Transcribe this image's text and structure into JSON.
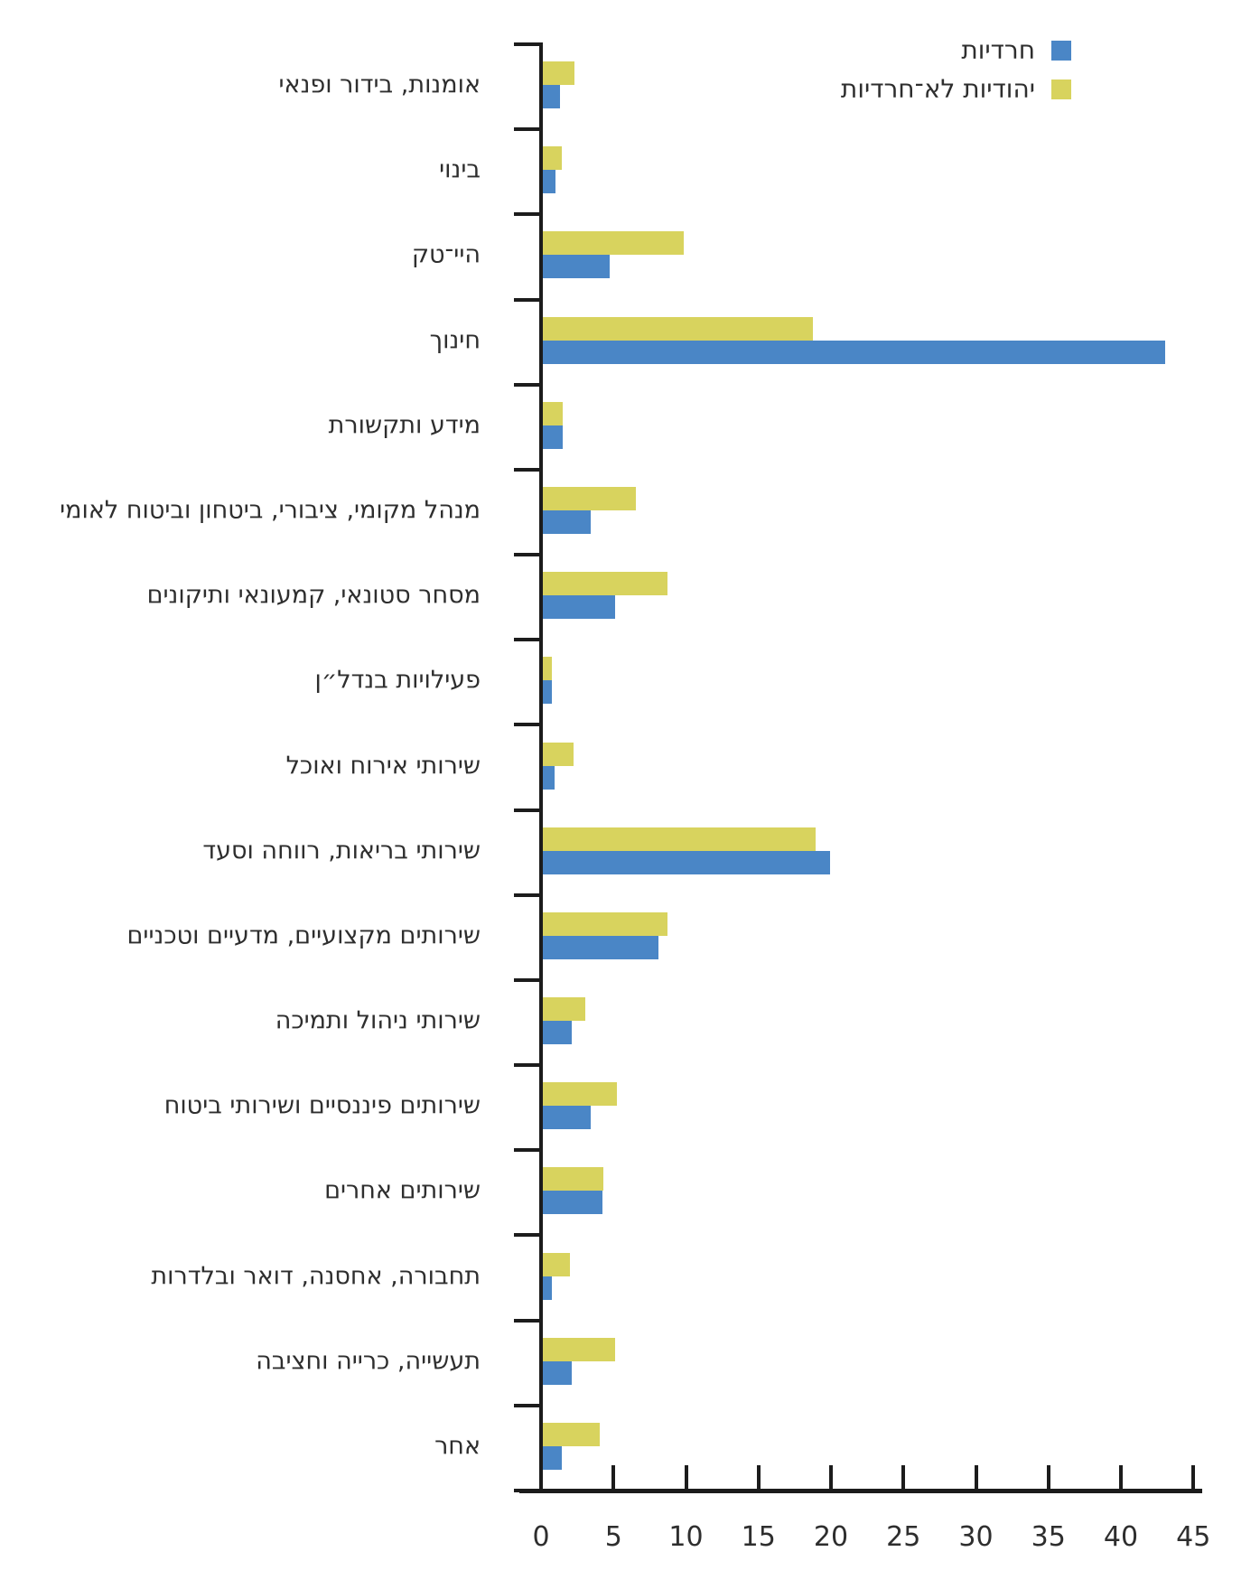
{
  "legend": {
    "items": [
      {
        "label": "חרדיות",
        "color": "#4a86c6"
      },
      {
        "label": "יהודיות לא־חרדיות",
        "color": "#d8d35e"
      }
    ]
  },
  "chart_data": {
    "type": "bar",
    "orientation": "horizontal",
    "title": "",
    "xlabel": "",
    "ylabel": "",
    "xlim": [
      0,
      45
    ],
    "x_ticks": [
      0,
      5,
      10,
      15,
      20,
      25,
      30,
      35,
      40,
      45
    ],
    "grid": false,
    "legend_position": "top-right",
    "categories": [
      "אומנות, בידור ופנאי",
      "בינוי",
      "היי־טק",
      "חינוך",
      "מידע ותקשורת",
      "מנהל מקומי, ציבורי, ביטחון וביטוח לאומי",
      "מסחר סטונאי, קמעונאי ותיקונים",
      "פעילויות בנדל״ן",
      "שירותי אירוח ואוכל",
      "שירותי בריאות, רווחה וסעד",
      "שירותים מקצועיים, מדעיים וטכניים",
      "שירותי ניהול ותמיכה",
      "שירותים פיננסיים ושירותי ביטוח",
      "שירותים אחרים",
      "תחבורה, אחסנה, דואר ובלדרות",
      "תעשייה, כרייה וחציבה",
      "אחר"
    ],
    "series": [
      {
        "name": "חרדיות",
        "color": "#4a86c6",
        "values": [
          1.2,
          0.9,
          4.6,
          42.9,
          1.4,
          3.3,
          5.0,
          0.6,
          0.8,
          19.8,
          8.0,
          2.0,
          3.3,
          4.1,
          0.6,
          2.0,
          1.3
        ]
      },
      {
        "name": "יהודיות לא־חרדיות",
        "color": "#d8d35e",
        "values": [
          2.2,
          1.3,
          9.7,
          18.6,
          1.4,
          6.4,
          8.6,
          0.6,
          2.1,
          18.8,
          8.6,
          2.9,
          5.1,
          4.2,
          1.9,
          5.0,
          3.9
        ]
      }
    ]
  },
  "colors": {
    "axis": "#1c1c1c",
    "text": "#2e2e2e",
    "background": "#ffffff"
  }
}
